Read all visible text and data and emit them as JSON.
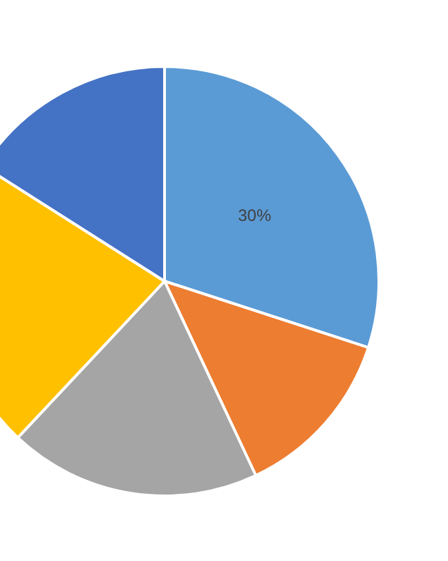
{
  "chart_data": {
    "type": "pie",
    "categories": [
      null,
      null,
      null,
      null,
      null
    ],
    "values": [
      30,
      13,
      19,
      22,
      16
    ],
    "colors": [
      "#5b9bd5",
      "#ed7d31",
      "#a5a5a5",
      "#ffc000",
      "#4472c4"
    ],
    "value_labels": [
      "30%",
      null,
      null,
      null,
      null
    ]
  }
}
